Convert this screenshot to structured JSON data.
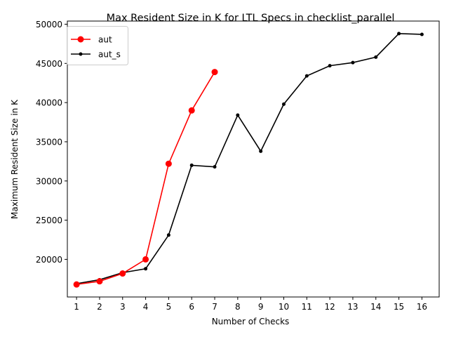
{
  "chart_data": {
    "type": "line",
    "title": "Max Resident Size in K for LTL Specs in checklist_parallel",
    "xlabel": "Number of Checks",
    "ylabel": "Maximum Resident Size in K",
    "xlim": [
      0.6,
      16.75
    ],
    "ylim": [
      15200,
      50400
    ],
    "xticks": [
      1,
      2,
      3,
      4,
      5,
      6,
      7,
      8,
      9,
      10,
      11,
      12,
      13,
      14,
      15,
      16
    ],
    "yticks": [
      20000,
      25000,
      30000,
      35000,
      40000,
      45000,
      50000
    ],
    "grid": false,
    "legend_position": "top-left",
    "series": [
      {
        "name": "aut",
        "color": "#ff0000",
        "marker": "large-circle",
        "x": [
          1,
          2,
          3,
          4,
          5,
          6,
          7
        ],
        "y": [
          16800,
          17200,
          18200,
          20000,
          32200,
          39000,
          43900
        ]
      },
      {
        "name": "aut_s",
        "color": "#000000",
        "marker": "small-dot",
        "x": [
          1,
          2,
          3,
          4,
          5,
          6,
          7,
          8,
          9,
          10,
          11,
          12,
          13,
          14,
          15,
          16
        ],
        "y": [
          16900,
          17400,
          18300,
          18800,
          23100,
          32000,
          31800,
          38400,
          33800,
          39800,
          43400,
          44700,
          45100,
          45800,
          48800,
          48700
        ]
      }
    ]
  }
}
